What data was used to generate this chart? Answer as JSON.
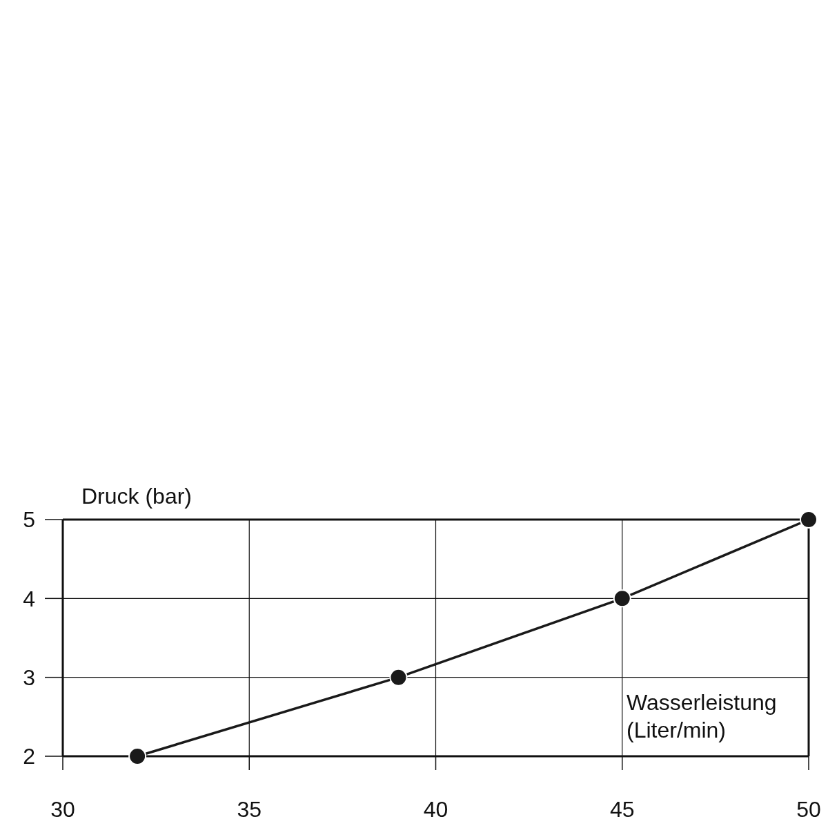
{
  "chart_data": {
    "type": "line",
    "ylabel": "Druck (bar)",
    "xlabel": "Wasserleistung (Liter/min)",
    "x": [
      32,
      39,
      45,
      50
    ],
    "series": [
      {
        "color": "#1a1a1a",
        "values": [
          2,
          3,
          4,
          5
        ]
      }
    ],
    "xlim": [
      30,
      50
    ],
    "xticks": [
      30,
      35,
      40,
      45,
      50
    ],
    "ylim": [
      2,
      5
    ],
    "yticks": [
      2,
      3,
      4,
      5
    ],
    "grid": true,
    "marker": "circle",
    "line_style": "solid"
  }
}
